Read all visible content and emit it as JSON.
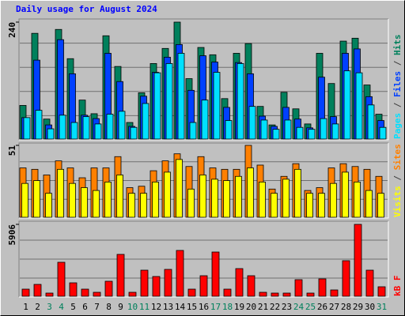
{
  "chart_data": [
    {
      "type": "bar",
      "title": "Daily usage for August 2024",
      "ylim": [
        0,
        240
      ],
      "yticks": [
        240
      ],
      "legend_separator": "/",
      "series": [
        {
          "name": "Hits",
          "color": "#00805c",
          "values": [
            69,
            217,
            41,
            225,
            165,
            80,
            52,
            212,
            149,
            34,
            95,
            155,
            186,
            240,
            124,
            188,
            173,
            83,
            176,
            196,
            67,
            29,
            96,
            62,
            31,
            176,
            114,
            201,
            207,
            111,
            51
          ]
        },
        {
          "name": "Files",
          "color": "#0040ff",
          "values": [
            44,
            162,
            29,
            204,
            134,
            49,
            42,
            176,
            118,
            26,
            88,
            137,
            168,
            194,
            100,
            171,
            158,
            65,
            157,
            134,
            47,
            26,
            65,
            41,
            23,
            127,
            46,
            176,
            185,
            87,
            38
          ]
        },
        {
          "name": "Pages",
          "color": "#00e0ff",
          "values": [
            44,
            59,
            21,
            49,
            34,
            46,
            31,
            51,
            57,
            24,
            73,
            136,
            155,
            176,
            34,
            80,
            137,
            38,
            155,
            67,
            39,
            20,
            39,
            24,
            20,
            42,
            31,
            140,
            136,
            70,
            24
          ]
        }
      ]
    },
    {
      "type": "bar",
      "ylim": [
        0,
        51
      ],
      "yticks": [
        51
      ],
      "legend_separator": "/",
      "series": [
        {
          "name": "Sites",
          "color": "#ff8000",
          "values": [
            35,
            34,
            30,
            40,
            35,
            28,
            35,
            35,
            43,
            21,
            22,
            33,
            40,
            45,
            36,
            43,
            35,
            34,
            34,
            51,
            37,
            20,
            29,
            38,
            19,
            21,
            35,
            38,
            36,
            34,
            29
          ]
        },
        {
          "name": "Visits",
          "color": "#ffff00",
          "values": [
            24,
            26,
            17,
            34,
            24,
            21,
            19,
            25,
            30,
            17,
            17,
            25,
            32,
            41,
            20,
            30,
            27,
            26,
            29,
            35,
            25,
            17,
            27,
            34,
            17,
            17,
            24,
            32,
            25,
            19,
            17
          ]
        }
      ]
    },
    {
      "type": "bar",
      "ylim": [
        0,
        5906
      ],
      "yticks": [
        5906
      ],
      "series": [
        {
          "name": "kB F",
          "color": "#ff0000",
          "values": [
            584,
            974,
            260,
            2791,
            1103,
            584,
            325,
            1233,
            3440,
            325,
            2142,
            1623,
            2207,
            3764,
            584,
            1687,
            3634,
            584,
            2272,
            1687,
            325,
            260,
            260,
            1363,
            260,
            1428,
            519,
            2921,
            5906,
            2142,
            779
          ]
        }
      ],
      "categories": [
        "1",
        "2",
        "3",
        "4",
        "5",
        "6",
        "7",
        "8",
        "9",
        "10",
        "11",
        "12",
        "13",
        "14",
        "15",
        "16",
        "17",
        "18",
        "19",
        "20",
        "21",
        "22",
        "23",
        "24",
        "25",
        "26",
        "27",
        "28",
        "29",
        "30",
        "31"
      ],
      "category_colors": [
        "#000000",
        "#000000",
        "#00805c",
        "#00805c",
        "#000000",
        "#000000",
        "#000000",
        "#000000",
        "#000000",
        "#00805c",
        "#00805c",
        "#000000",
        "#000000",
        "#000000",
        "#000000",
        "#000000",
        "#00805c",
        "#00805c",
        "#000000",
        "#000000",
        "#000000",
        "#000000",
        "#000000",
        "#00805c",
        "#00805c",
        "#000000",
        "#000000",
        "#000000",
        "#000000",
        "#000000",
        "#00805c"
      ]
    }
  ]
}
